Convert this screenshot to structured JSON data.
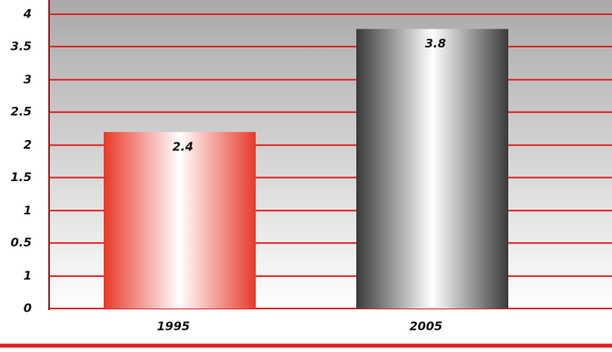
{
  "chart_data": {
    "type": "bar",
    "categories": [
      "1995",
      "2005"
    ],
    "values": [
      2.4,
      3.8
    ],
    "series_colors": [
      "#e8392a",
      "#3a3a3a"
    ],
    "ylim": [
      0,
      4
    ],
    "yticks": [
      0,
      {
        "value": 0.44,
        "label": "1"
      },
      {
        "value": 0.89,
        "label": "0.5"
      },
      {
        "value": 1.33,
        "label": "1"
      },
      {
        "value": 1.78,
        "label": "1.5"
      },
      {
        "value": 2.22,
        "label": "2"
      },
      {
        "value": 2.67,
        "label": "2.5"
      },
      {
        "value": 3.11,
        "label": "3"
      },
      {
        "value": 3.56,
        "label": "3.5"
      },
      4
    ],
    "grid": true
  }
}
